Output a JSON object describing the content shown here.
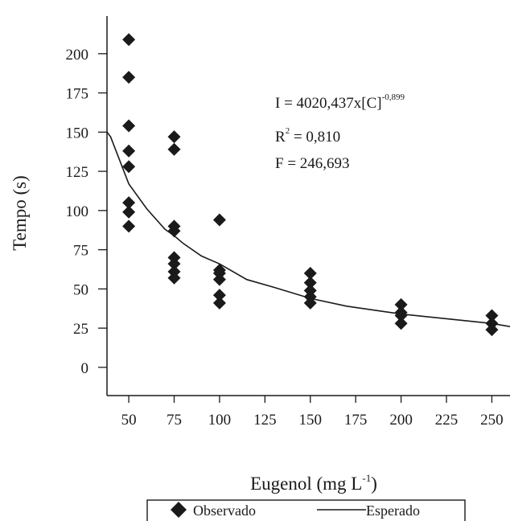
{
  "chart_data": {
    "type": "scatter",
    "xlabel": "Eugenol (mg L",
    "xlabel_sup": "-1",
    "xlabel_end": ")",
    "ylabel": "Tempo (s)",
    "xlim": [
      38,
      260
    ],
    "ylim": [
      -18,
      224
    ],
    "x_ticks": [
      50,
      75,
      100,
      125,
      150,
      175,
      200,
      225,
      250
    ],
    "y_ticks": [
      0,
      25,
      50,
      75,
      100,
      125,
      150,
      175,
      200
    ],
    "grid": false,
    "legend_position": "bottom",
    "annotations": {
      "equation_main": "I = 4020,437x[C]",
      "equation_exp": "-0,899",
      "r2_label": "R",
      "r2_sup": "2",
      "r2_value": " = 0,810",
      "f_text": "F = 246,693"
    },
    "series": [
      {
        "name": "Observado",
        "marker": "diamond",
        "color": "#1a1a1a",
        "points": [
          [
            50,
            209
          ],
          [
            50,
            185
          ],
          [
            50,
            154
          ],
          [
            50,
            138
          ],
          [
            50,
            128
          ],
          [
            50,
            105
          ],
          [
            50,
            99
          ],
          [
            50,
            90
          ],
          [
            75,
            147
          ],
          [
            75,
            139
          ],
          [
            75,
            90
          ],
          [
            75,
            87
          ],
          [
            75,
            70
          ],
          [
            75,
            66
          ],
          [
            75,
            61
          ],
          [
            75,
            57
          ],
          [
            100,
            94
          ],
          [
            100,
            62
          ],
          [
            100,
            60
          ],
          [
            100,
            56
          ],
          [
            100,
            46
          ],
          [
            100,
            41
          ],
          [
            150,
            60
          ],
          [
            150,
            54
          ],
          [
            150,
            49
          ],
          [
            150,
            45
          ],
          [
            150,
            41
          ],
          [
            200,
            40
          ],
          [
            200,
            35
          ],
          [
            200,
            33
          ],
          [
            200,
            28
          ],
          [
            250,
            33
          ],
          [
            250,
            28
          ],
          [
            250,
            24
          ]
        ]
      },
      {
        "name": "Esperado",
        "type": "line",
        "color": "#1a1a1a",
        "points": [
          [
            38,
            150
          ],
          [
            40,
            147
          ],
          [
            45,
            132
          ],
          [
            50,
            117
          ],
          [
            60,
            101
          ],
          [
            70,
            88
          ],
          [
            75,
            84
          ],
          [
            80,
            79
          ],
          [
            90,
            71
          ],
          [
            100,
            66
          ],
          [
            115,
            56
          ],
          [
            130,
            51
          ],
          [
            150,
            44
          ],
          [
            170,
            39
          ],
          [
            200,
            34
          ],
          [
            225,
            31
          ],
          [
            250,
            28
          ],
          [
            260,
            26
          ]
        ]
      }
    ]
  }
}
